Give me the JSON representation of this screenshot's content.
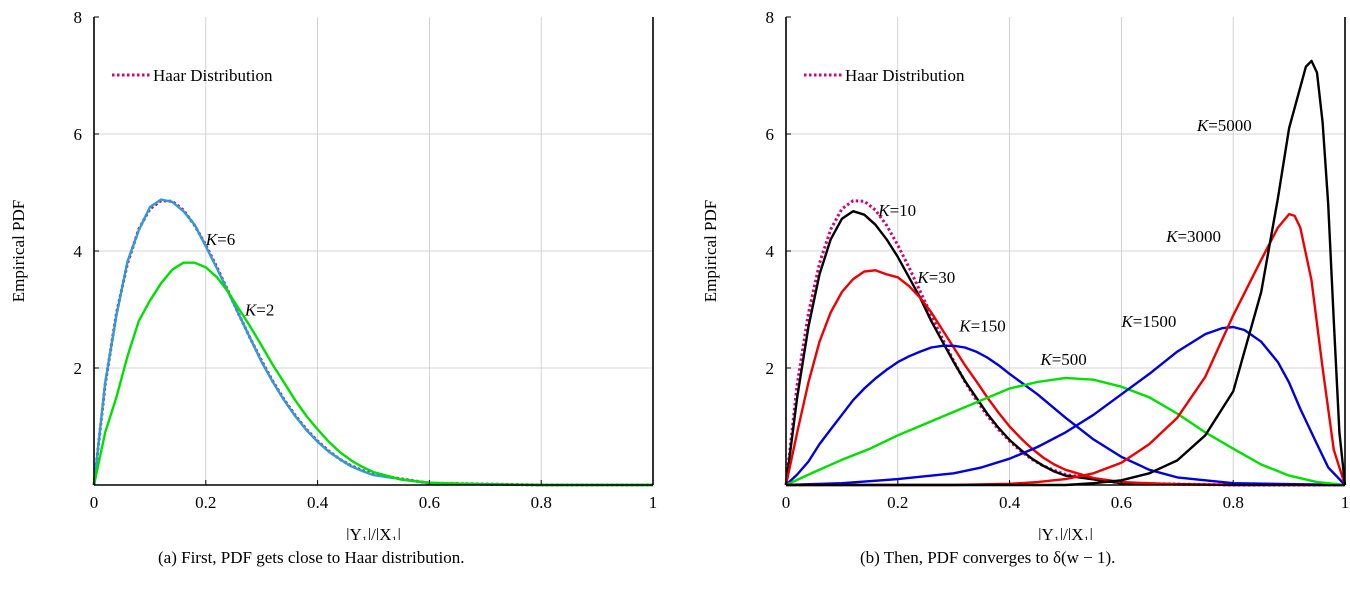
{
  "captions": {
    "a": "(a) First, PDF gets close to Haar distribution.",
    "b": "(b) Then, PDF converges to δ(w − 1)."
  },
  "chart_data": [
    {
      "type": "line",
      "xlabel": "|Y₁|/|X₁|",
      "ylabel": "Empirical PDF",
      "xlim": [
        0,
        1
      ],
      "ylim": [
        0,
        8
      ],
      "xticks": [
        "0",
        "0.2",
        "0.4",
        "0.6",
        "0.8",
        "1"
      ],
      "yticks": [
        "2",
        "4",
        "6",
        "8"
      ],
      "xtick_values": [
        0,
        0.2,
        0.4,
        0.6,
        0.8,
        1
      ],
      "ytick_values": [
        2,
        4,
        6,
        8
      ],
      "grid": true,
      "legend": {
        "position": "top-left",
        "entries": [
          {
            "name": "Haar Distribution",
            "color": "#d6007a",
            "style": "dotted"
          }
        ]
      },
      "series": [
        {
          "name": "Haar Distribution",
          "color": "#d6007a",
          "style": "dotted",
          "x": [
            0,
            0.02,
            0.04,
            0.06,
            0.08,
            0.1,
            0.12,
            0.14,
            0.16,
            0.18,
            0.2,
            0.22,
            0.24,
            0.26,
            0.28,
            0.3,
            0.32,
            0.34,
            0.36,
            0.38,
            0.4,
            0.42,
            0.44,
            0.46,
            0.48,
            0.5,
            0.6,
            0.8,
            1
          ],
          "y": [
            0,
            1.72,
            2.93,
            3.79,
            4.37,
            4.72,
            4.86,
            4.85,
            4.7,
            4.44,
            4.1,
            3.72,
            3.31,
            2.9,
            2.5,
            2.12,
            1.77,
            1.46,
            1.19,
            0.95,
            0.75,
            0.58,
            0.44,
            0.33,
            0.25,
            0.18,
            0.03,
            0.0,
            0.0
          ]
        },
        {
          "name": "K=6",
          "color": "#2a9fd6",
          "style": "solid",
          "x": [
            0,
            0.02,
            0.04,
            0.06,
            0.08,
            0.1,
            0.12,
            0.14,
            0.16,
            0.18,
            0.2,
            0.22,
            0.24,
            0.26,
            0.28,
            0.3,
            0.32,
            0.34,
            0.36,
            0.38,
            0.4,
            0.42,
            0.44,
            0.46,
            0.48,
            0.5,
            0.6,
            0.8,
            1
          ],
          "y": [
            0,
            1.75,
            2.9,
            3.82,
            4.35,
            4.75,
            4.88,
            4.84,
            4.68,
            4.45,
            4.08,
            3.7,
            3.3,
            2.9,
            2.5,
            2.1,
            1.76,
            1.45,
            1.18,
            0.94,
            0.74,
            0.57,
            0.44,
            0.32,
            0.24,
            0.17,
            0.03,
            0.0,
            0.0
          ]
        },
        {
          "name": "K=2",
          "color": "#00e000",
          "style": "solid",
          "x": [
            0,
            0.02,
            0.04,
            0.06,
            0.08,
            0.1,
            0.12,
            0.14,
            0.16,
            0.18,
            0.2,
            0.22,
            0.24,
            0.26,
            0.28,
            0.3,
            0.32,
            0.34,
            0.36,
            0.38,
            0.4,
            0.42,
            0.44,
            0.46,
            0.48,
            0.5,
            0.55,
            0.6,
            0.7,
            0.8,
            1
          ],
          "y": [
            0,
            0.9,
            1.5,
            2.2,
            2.8,
            3.15,
            3.45,
            3.68,
            3.8,
            3.8,
            3.72,
            3.55,
            3.3,
            3.0,
            2.7,
            2.38,
            2.05,
            1.75,
            1.45,
            1.18,
            0.95,
            0.74,
            0.56,
            0.42,
            0.31,
            0.22,
            0.09,
            0.04,
            0.01,
            0.0,
            0.0
          ]
        }
      ],
      "annotations": [
        {
          "text": "K=6",
          "x": 0.2,
          "y": 4.1
        },
        {
          "text": "K=2",
          "x": 0.27,
          "y": 2.9
        }
      ]
    },
    {
      "type": "line",
      "xlabel": "|Y₁|/|X₁|",
      "ylabel": "Empirical PDF",
      "xlim": [
        0,
        1
      ],
      "ylim": [
        0,
        8
      ],
      "xticks": [
        "0",
        "0.2",
        "0.4",
        "0.6",
        "0.8",
        "1"
      ],
      "yticks": [
        "2",
        "4",
        "6",
        "8"
      ],
      "xtick_values": [
        0,
        0.2,
        0.4,
        0.6,
        0.8,
        1
      ],
      "ytick_values": [
        2,
        4,
        6,
        8
      ],
      "grid": true,
      "legend": {
        "position": "top-left",
        "entries": [
          {
            "name": "Haar Distribution",
            "color": "#d6007a",
            "style": "dotted"
          }
        ]
      },
      "series": [
        {
          "name": "Haar Distribution",
          "color": "#d6007a",
          "style": "dotted",
          "x": [
            0,
            0.02,
            0.04,
            0.06,
            0.08,
            0.1,
            0.12,
            0.14,
            0.16,
            0.18,
            0.2,
            0.22,
            0.24,
            0.26,
            0.28,
            0.3,
            0.32,
            0.34,
            0.36,
            0.38,
            0.4,
            0.42,
            0.44,
            0.46,
            0.48,
            0.5,
            0.6,
            0.8,
            1
          ],
          "y": [
            0,
            1.72,
            2.93,
            3.79,
            4.37,
            4.72,
            4.86,
            4.85,
            4.7,
            4.44,
            4.1,
            3.72,
            3.31,
            2.9,
            2.5,
            2.12,
            1.77,
            1.46,
            1.19,
            0.95,
            0.75,
            0.58,
            0.44,
            0.33,
            0.25,
            0.18,
            0.03,
            0.0,
            0.0
          ]
        },
        {
          "name": "K=10",
          "color": "#000000",
          "style": "solid",
          "x": [
            0,
            0.02,
            0.04,
            0.06,
            0.08,
            0.1,
            0.12,
            0.14,
            0.16,
            0.18,
            0.2,
            0.22,
            0.24,
            0.26,
            0.28,
            0.3,
            0.32,
            0.34,
            0.36,
            0.38,
            0.4,
            0.42,
            0.44,
            0.46,
            0.48,
            0.5,
            0.6,
            0.8,
            1
          ],
          "y": [
            0,
            1.5,
            2.7,
            3.6,
            4.2,
            4.55,
            4.68,
            4.62,
            4.45,
            4.2,
            3.9,
            3.55,
            3.2,
            2.8,
            2.45,
            2.1,
            1.78,
            1.5,
            1.22,
            0.98,
            0.77,
            0.6,
            0.45,
            0.33,
            0.23,
            0.16,
            0.03,
            0.0,
            0.0
          ]
        },
        {
          "name": "K=30",
          "color": "#ee0000",
          "style": "solid",
          "x": [
            0,
            0.02,
            0.04,
            0.06,
            0.08,
            0.1,
            0.12,
            0.14,
            0.16,
            0.18,
            0.2,
            0.22,
            0.24,
            0.26,
            0.28,
            0.3,
            0.32,
            0.34,
            0.36,
            0.38,
            0.4,
            0.42,
            0.44,
            0.46,
            0.48,
            0.5,
            0.55,
            0.6,
            0.7,
            1
          ],
          "y": [
            0,
            0.9,
            1.75,
            2.45,
            2.95,
            3.3,
            3.52,
            3.65,
            3.67,
            3.6,
            3.55,
            3.4,
            3.2,
            2.95,
            2.65,
            2.35,
            2.05,
            1.78,
            1.5,
            1.24,
            1.0,
            0.8,
            0.62,
            0.47,
            0.35,
            0.26,
            0.12,
            0.05,
            0.01,
            0.0
          ]
        },
        {
          "name": "K=150",
          "color": "#0000dd",
          "style": "solid",
          "x": [
            0,
            0.02,
            0.04,
            0.06,
            0.08,
            0.1,
            0.12,
            0.14,
            0.16,
            0.18,
            0.2,
            0.22,
            0.24,
            0.26,
            0.28,
            0.3,
            0.32,
            0.34,
            0.36,
            0.38,
            0.4,
            0.45,
            0.5,
            0.55,
            0.6,
            0.65,
            0.7,
            0.8,
            1
          ],
          "y": [
            0,
            0.18,
            0.4,
            0.7,
            0.95,
            1.2,
            1.45,
            1.65,
            1.82,
            1.97,
            2.1,
            2.2,
            2.28,
            2.35,
            2.38,
            2.38,
            2.35,
            2.28,
            2.18,
            2.05,
            1.9,
            1.55,
            1.15,
            0.78,
            0.48,
            0.26,
            0.13,
            0.03,
            0.0
          ]
        },
        {
          "name": "K=500",
          "color": "#00e000",
          "style": "solid",
          "x": [
            0,
            0.05,
            0.1,
            0.15,
            0.2,
            0.25,
            0.3,
            0.35,
            0.4,
            0.45,
            0.5,
            0.55,
            0.6,
            0.65,
            0.7,
            0.75,
            0.8,
            0.85,
            0.9,
            0.95,
            1
          ],
          "y": [
            0,
            0.22,
            0.43,
            0.62,
            0.85,
            1.05,
            1.25,
            1.45,
            1.65,
            1.76,
            1.83,
            1.8,
            1.68,
            1.5,
            1.22,
            0.9,
            0.62,
            0.35,
            0.16,
            0.05,
            0.0
          ]
        },
        {
          "name": "K=1500",
          "color": "#0000dd",
          "style": "solid",
          "x": [
            0,
            0.1,
            0.2,
            0.3,
            0.35,
            0.4,
            0.45,
            0.5,
            0.55,
            0.6,
            0.65,
            0.7,
            0.75,
            0.78,
            0.8,
            0.82,
            0.85,
            0.88,
            0.9,
            0.92,
            0.95,
            0.97,
            1
          ],
          "y": [
            0,
            0.03,
            0.1,
            0.2,
            0.3,
            0.45,
            0.65,
            0.9,
            1.2,
            1.55,
            1.9,
            2.28,
            2.58,
            2.68,
            2.7,
            2.65,
            2.45,
            2.1,
            1.75,
            1.3,
            0.7,
            0.3,
            0.0
          ]
        },
        {
          "name": "K=3000",
          "color": "#ee0000",
          "style": "solid",
          "x": [
            0,
            0.3,
            0.4,
            0.45,
            0.5,
            0.55,
            0.6,
            0.65,
            0.7,
            0.75,
            0.8,
            0.85,
            0.88,
            0.9,
            0.91,
            0.92,
            0.94,
            0.96,
            0.98,
            1
          ],
          "y": [
            0,
            0.0,
            0.02,
            0.05,
            0.1,
            0.2,
            0.38,
            0.7,
            1.15,
            1.85,
            2.9,
            3.85,
            4.4,
            4.63,
            4.6,
            4.4,
            3.5,
            2.0,
            0.6,
            0.0
          ]
        },
        {
          "name": "K=5000",
          "color": "#000000",
          "style": "solid",
          "x": [
            0,
            0.5,
            0.55,
            0.6,
            0.65,
            0.7,
            0.75,
            0.8,
            0.85,
            0.88,
            0.9,
            0.92,
            0.93,
            0.94,
            0.95,
            0.96,
            0.97,
            0.98,
            0.99,
            1
          ],
          "y": [
            0,
            0.0,
            0.03,
            0.08,
            0.2,
            0.42,
            0.85,
            1.6,
            3.3,
            4.9,
            6.1,
            6.8,
            7.15,
            7.25,
            7.05,
            6.2,
            4.8,
            2.8,
            0.9,
            0.0
          ]
        }
      ],
      "annotations": [
        {
          "text": "K=10",
          "x": 0.165,
          "y": 4.6
        },
        {
          "text": "K=30",
          "x": 0.235,
          "y": 3.45
        },
        {
          "text": "K=150",
          "x": 0.31,
          "y": 2.62
        },
        {
          "text": "K=500",
          "x": 0.455,
          "y": 2.05
        },
        {
          "text": "K=1500",
          "x": 0.6,
          "y": 2.7
        },
        {
          "text": "K=3000",
          "x": 0.68,
          "y": 4.15
        },
        {
          "text": "K=5000",
          "x": 0.735,
          "y": 6.05
        }
      ]
    }
  ]
}
